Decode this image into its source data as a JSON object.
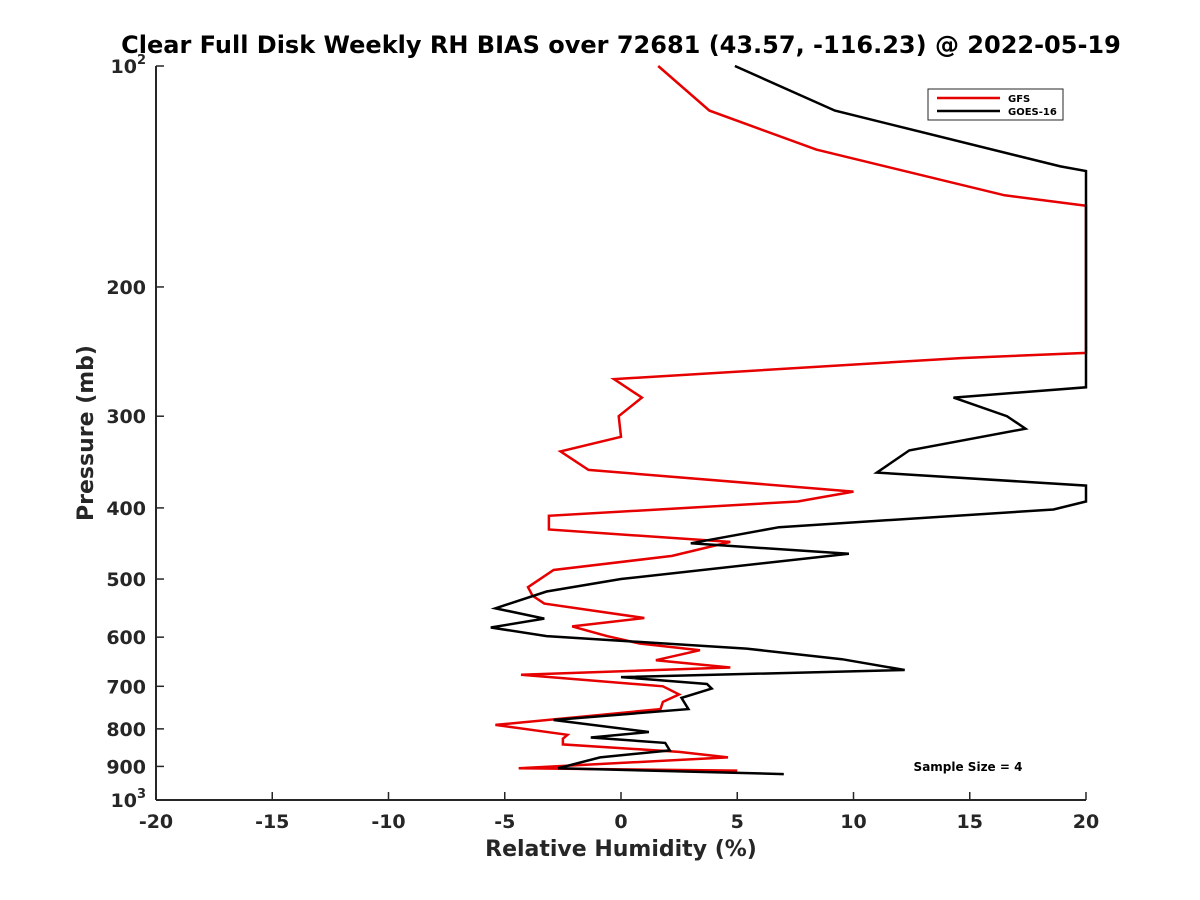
{
  "chart_data": {
    "type": "line",
    "title": "Clear Full Disk Weekly RH BIAS over 72681 (43.57, -116.23) @ 2022-05-19",
    "xlabel": "Relative Humidity (%)",
    "ylabel": "Pressure (mb)",
    "xlim": [
      -20,
      20
    ],
    "ylim": [
      100,
      1000
    ],
    "y_scale": "log",
    "y_reversed": true,
    "grid": false,
    "legend_position": "top-right",
    "x_ticks": [
      -20,
      -15,
      -10,
      -5,
      0,
      5,
      10,
      15,
      20
    ],
    "x_tick_labels": [
      "-20",
      "-15",
      "-10",
      "-5",
      "0",
      "5",
      "10",
      "15",
      "20"
    ],
    "y_ticks": [
      100,
      200,
      300,
      400,
      500,
      600,
      700,
      800,
      900,
      1000
    ],
    "y_tick_labels": [
      {
        "base": "10",
        "sup": "2"
      },
      {
        "base": "200",
        "sup": ""
      },
      {
        "base": "300",
        "sup": ""
      },
      {
        "base": "400",
        "sup": ""
      },
      {
        "base": "500",
        "sup": ""
      },
      {
        "base": "600",
        "sup": ""
      },
      {
        "base": "700",
        "sup": ""
      },
      {
        "base": "800",
        "sup": ""
      },
      {
        "base": "900",
        "sup": ""
      },
      {
        "base": "10",
        "sup": "3"
      }
    ],
    "annotation": "Sample Size = 4",
    "series": [
      {
        "name": "GFS",
        "color": "#e60000",
        "points": [
          [
            1.6,
            100
          ],
          [
            3.8,
            115
          ],
          [
            8.4,
            130
          ],
          [
            16.5,
            150
          ],
          [
            20,
            155
          ],
          [
            20,
            246
          ],
          [
            14.6,
            250
          ],
          [
            -0.3,
            267
          ],
          [
            0.9,
            283
          ],
          [
            -0.1,
            300
          ],
          [
            0.0,
            320
          ],
          [
            -2.6,
            335
          ],
          [
            -1.4,
            355
          ],
          [
            10.0,
            380
          ],
          [
            7.6,
            392
          ],
          [
            -3.1,
            410
          ],
          [
            -3.1,
            428
          ],
          [
            4.7,
            445
          ],
          [
            2.2,
            465
          ],
          [
            -2.9,
            486
          ],
          [
            -4.0,
            513
          ],
          [
            -3.8,
            527
          ],
          [
            -3.3,
            540
          ],
          [
            1.0,
            565
          ],
          [
            -2.1,
            580
          ],
          [
            -0.6,
            598
          ],
          [
            0.8,
            612
          ],
          [
            3.4,
            625
          ],
          [
            1.5,
            645
          ],
          [
            4.7,
            660
          ],
          [
            -4.3,
            675
          ],
          [
            1.8,
            700
          ],
          [
            2.5,
            718
          ],
          [
            1.8,
            735
          ],
          [
            1.7,
            752
          ],
          [
            -5.4,
            790
          ],
          [
            -2.3,
            815
          ],
          [
            -2.5,
            825
          ],
          [
            -2.5,
            840
          ],
          [
            2.5,
            860
          ],
          [
            4.6,
            875
          ],
          [
            -4.4,
            905
          ],
          [
            5.0,
            912
          ]
        ]
      },
      {
        "name": "GOES-16",
        "color": "#000000",
        "points": [
          [
            4.9,
            100
          ],
          [
            9.2,
            115
          ],
          [
            18.9,
            137
          ],
          [
            20,
            139
          ],
          [
            20,
            274
          ],
          [
            14.3,
            283
          ],
          [
            16.6,
            300
          ],
          [
            17.4,
            312
          ],
          [
            12.4,
            334
          ],
          [
            11.0,
            358
          ],
          [
            20,
            373
          ],
          [
            20,
            392
          ],
          [
            18.6,
            402
          ],
          [
            6.8,
            425
          ],
          [
            3.0,
            447
          ],
          [
            9.8,
            462
          ],
          [
            0.0,
            500
          ],
          [
            -3.2,
            520
          ],
          [
            -5.4,
            548
          ],
          [
            -3.3,
            566
          ],
          [
            -5.6,
            582
          ],
          [
            -3.2,
            598
          ],
          [
            5.4,
            622
          ],
          [
            9.5,
            643
          ],
          [
            12.2,
            665
          ],
          [
            0.0,
            680
          ],
          [
            3.7,
            695
          ],
          [
            3.9,
            705
          ],
          [
            2.6,
            726
          ],
          [
            2.9,
            752
          ],
          [
            -2.9,
            778
          ],
          [
            1.2,
            808
          ],
          [
            -1.3,
            822
          ],
          [
            1.9,
            836
          ],
          [
            2.1,
            856
          ],
          [
            -0.9,
            875
          ],
          [
            -2.7,
            905
          ],
          [
            7.0,
            922
          ]
        ]
      }
    ]
  }
}
